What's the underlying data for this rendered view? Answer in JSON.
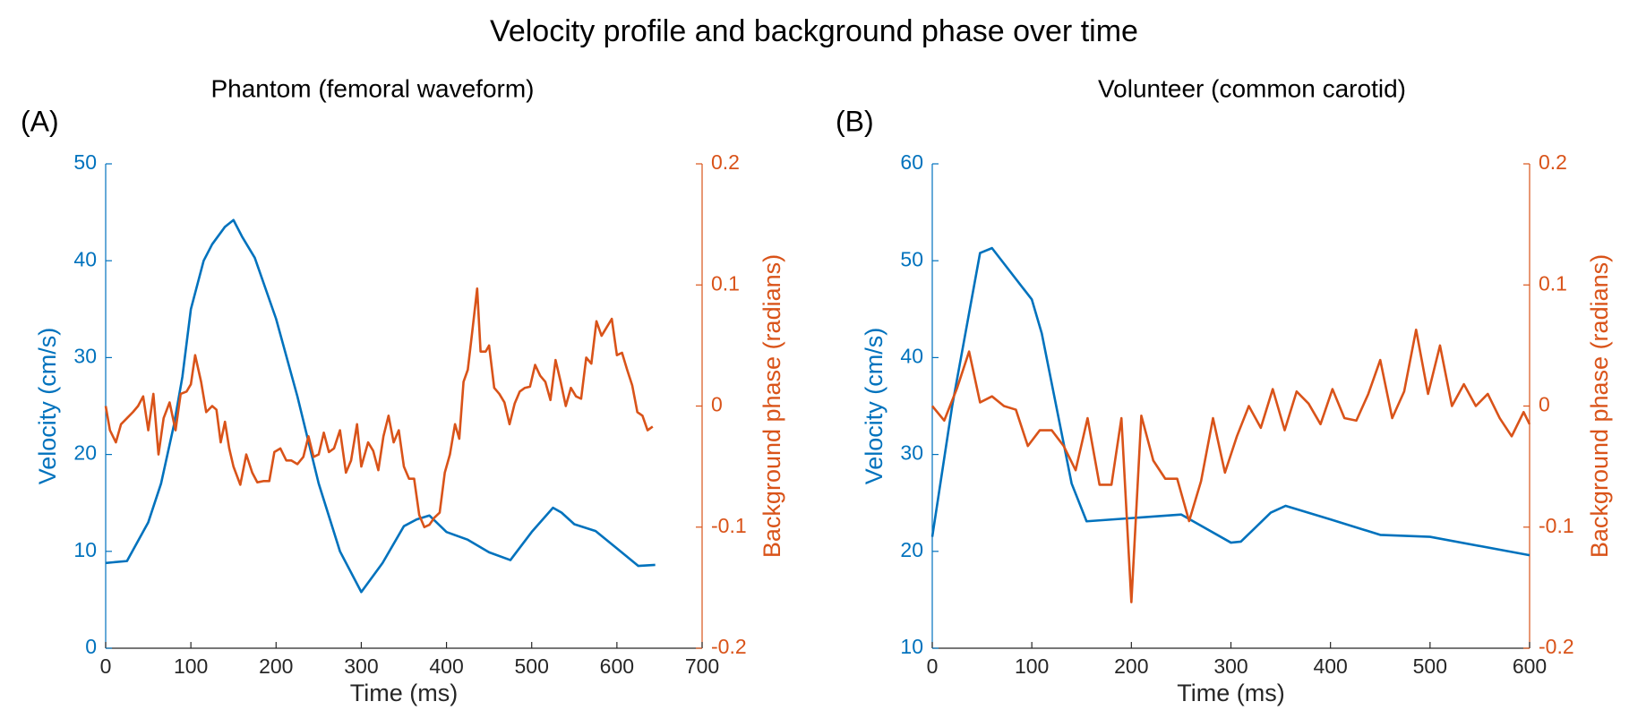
{
  "title": "Velocity profile and background phase over time",
  "chart_data": [
    {
      "type": "line",
      "label": "(A)",
      "title": "Phantom (femoral waveform)",
      "xlabel": "Time (ms)",
      "ylabel": "Velocity (cm/s)",
      "y2label": "Background phase (radians)",
      "xlim": [
        0,
        700
      ],
      "xticks": [
        0,
        100,
        200,
        300,
        400,
        500,
        600,
        700
      ],
      "ylim": [
        0,
        50
      ],
      "yticks": [
        0,
        10,
        20,
        30,
        40,
        50
      ],
      "y2lim": [
        -0.2,
        0.2
      ],
      "y2ticks": [
        -0.2,
        -0.1,
        0,
        0.1,
        0.2
      ],
      "series": [
        {
          "name": "Velocity",
          "color": "#0072BD",
          "x": [
            0,
            25,
            50,
            65,
            80,
            90,
            100,
            115,
            125,
            140,
            150,
            160,
            175,
            200,
            225,
            250,
            275,
            300,
            325,
            350,
            365,
            380,
            400,
            425,
            450,
            475,
            500,
            525,
            535,
            550,
            575,
            600,
            625,
            645
          ],
          "values": [
            8.8,
            9.0,
            13,
            17,
            23,
            28,
            35,
            40,
            41.7,
            43.5,
            44.2,
            42.5,
            40.3,
            34,
            26,
            17,
            10,
            5.8,
            8.8,
            12.6,
            13.3,
            13.7,
            12,
            11.2,
            9.9,
            9.1,
            12,
            14.5,
            14,
            12.8,
            12.1,
            10.3,
            8.5,
            8.6
          ]
        },
        {
          "name": "Background phase",
          "color": "#D95319",
          "axis": "y2",
          "x": [
            0,
            5,
            12,
            18,
            25,
            32,
            38,
            44,
            50,
            56,
            62,
            68,
            75,
            82,
            88,
            95,
            100,
            105,
            112,
            118,
            125,
            130,
            135,
            140,
            145,
            150,
            158,
            165,
            172,
            178,
            185,
            192,
            198,
            205,
            212,
            218,
            225,
            232,
            238,
            244,
            250,
            256,
            262,
            268,
            275,
            282,
            288,
            295,
            300,
            308,
            314,
            320,
            326,
            332,
            338,
            344,
            350,
            356,
            362,
            368,
            374,
            380,
            386,
            392,
            398,
            404,
            410,
            415,
            420,
            425,
            430,
            436,
            440,
            446,
            450,
            456,
            462,
            468,
            474,
            480,
            486,
            492,
            498,
            504,
            510,
            516,
            522,
            528,
            534,
            540,
            546,
            552,
            558,
            564,
            570,
            576,
            582,
            588,
            594,
            600,
            606,
            612,
            618,
            624,
            630,
            636,
            642
          ],
          "values": [
            0.0,
            -0.02,
            -0.03,
            -0.015,
            -0.01,
            -0.005,
            0.0,
            0.008,
            -0.02,
            0.01,
            -0.04,
            -0.01,
            0.003,
            -0.02,
            0.01,
            0.012,
            0.018,
            0.042,
            0.02,
            -0.005,
            0.0,
            -0.003,
            -0.03,
            -0.013,
            -0.035,
            -0.05,
            -0.065,
            -0.04,
            -0.055,
            -0.063,
            -0.062,
            -0.062,
            -0.038,
            -0.035,
            -0.045,
            -0.045,
            -0.048,
            -0.042,
            -0.025,
            -0.042,
            -0.04,
            -0.022,
            -0.038,
            -0.035,
            -0.02,
            -0.055,
            -0.045,
            -0.015,
            -0.05,
            -0.03,
            -0.037,
            -0.053,
            -0.025,
            -0.008,
            -0.03,
            -0.02,
            -0.05,
            -0.06,
            -0.06,
            -0.09,
            -0.1,
            -0.098,
            -0.092,
            -0.088,
            -0.055,
            -0.04,
            -0.015,
            -0.027,
            0.02,
            0.03,
            0.06,
            0.097,
            0.045,
            0.045,
            0.05,
            0.015,
            0.01,
            0.003,
            -0.015,
            0.002,
            0.012,
            0.015,
            0.016,
            0.034,
            0.025,
            0.02,
            0.005,
            0.038,
            0.02,
            0.0,
            0.015,
            0.008,
            0.006,
            0.04,
            0.035,
            0.07,
            0.058,
            0.065,
            0.072,
            0.042,
            0.044,
            0.03,
            0.017,
            -0.005,
            -0.008,
            -0.02,
            -0.017
          ]
        }
      ]
    },
    {
      "type": "line",
      "label": "(B)",
      "title": "Volunteer (common carotid)",
      "xlabel": "Time (ms)",
      "ylabel": "Velocity (cm/s)",
      "y2label": "Background phase (radians)",
      "xlim": [
        0,
        600
      ],
      "xticks": [
        0,
        100,
        200,
        300,
        400,
        500,
        600
      ],
      "ylim": [
        10,
        60
      ],
      "yticks": [
        10,
        20,
        30,
        40,
        50,
        60
      ],
      "y2lim": [
        -0.2,
        0.2
      ],
      "y2ticks": [
        -0.2,
        -0.1,
        0,
        0.1,
        0.2
      ],
      "series": [
        {
          "name": "Velocity",
          "color": "#0072BD",
          "x": [
            0,
            20,
            48,
            60,
            100,
            110,
            140,
            155,
            250,
            300,
            310,
            340,
            355,
            400,
            450,
            500,
            600
          ],
          "values": [
            21.5,
            35,
            50.8,
            51.3,
            46,
            42.5,
            27,
            23.1,
            23.8,
            20.9,
            21,
            24,
            24.7,
            23.3,
            21.7,
            21.5,
            19.6
          ]
        },
        {
          "name": "Background phase",
          "color": "#D95319",
          "axis": "y2",
          "x": [
            0,
            12,
            25,
            37,
            48,
            60,
            72,
            84,
            96,
            108,
            120,
            132,
            144,
            156,
            168,
            180,
            190,
            200,
            210,
            222,
            234,
            246,
            258,
            270,
            282,
            294,
            306,
            318,
            330,
            342,
            354,
            366,
            378,
            390,
            402,
            414,
            426,
            438,
            450,
            462,
            474,
            486,
            498,
            510,
            522,
            534,
            546,
            558,
            570,
            582,
            594,
            600
          ],
          "values": [
            0.0,
            -0.012,
            0.015,
            0.045,
            0.003,
            0.008,
            0.0,
            -0.003,
            -0.033,
            -0.02,
            -0.02,
            -0.033,
            -0.053,
            -0.01,
            -0.065,
            -0.065,
            -0.01,
            -0.162,
            -0.008,
            -0.045,
            -0.06,
            -0.06,
            -0.095,
            -0.062,
            -0.01,
            -0.055,
            -0.025,
            0.0,
            -0.018,
            0.014,
            -0.02,
            0.012,
            0.002,
            -0.015,
            0.014,
            -0.01,
            -0.012,
            0.01,
            0.038,
            -0.01,
            0.012,
            0.063,
            0.01,
            0.05,
            0.0,
            0.018,
            0.0,
            0.01,
            -0.01,
            -0.025,
            -0.005,
            -0.015
          ]
        }
      ]
    }
  ]
}
